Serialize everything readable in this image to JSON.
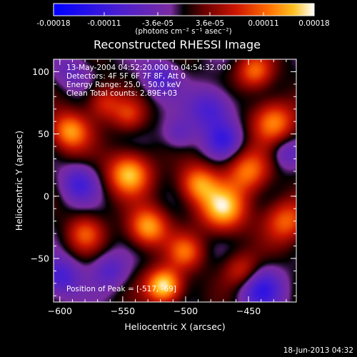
{
  "colorbar": {
    "tick_labels": [
      "-0.00018",
      "-0.00011",
      "-3.6e-05",
      "3.6e-05",
      "0.00011",
      "0.00018"
    ],
    "tick_values": [
      -0.00018,
      -0.00011,
      -3.6e-05,
      3.6e-05,
      0.00011,
      0.00018
    ],
    "range": [
      -0.00018,
      0.00018
    ],
    "units_label": "(photons cm⁻² s⁻¹ asec⁻²)",
    "stops": [
      {
        "v": 0.0,
        "color": "#0000ff"
      },
      {
        "v": 0.25,
        "color": "#4a1fd0"
      },
      {
        "v": 0.45,
        "color": "#7a2ca0"
      },
      {
        "v": 0.5,
        "color": "#000000"
      },
      {
        "v": 0.58,
        "color": "#6a0000"
      },
      {
        "v": 0.7,
        "color": "#cc1500"
      },
      {
        "v": 0.82,
        "color": "#ff6a00"
      },
      {
        "v": 0.92,
        "color": "#ffc020"
      },
      {
        "v": 1.0,
        "color": "#ffffff"
      }
    ]
  },
  "chart_data": {
    "type": "heatmap",
    "title": "Reconstructed RHESSI Image",
    "xlabel": "Heliocentric X (arcsec)",
    "ylabel": "Heliocentric Y (arcsec)",
    "xlim": [
      -605,
      -412
    ],
    "ylim": [
      -85,
      110
    ],
    "x_ticks": [
      -600,
      -550,
      -500,
      -450
    ],
    "y_ticks": [
      -50,
      0,
      50,
      100
    ],
    "annotations": [
      "13-May-2004 04:52:20.000 to 04:54:32.000",
      "Detectors: 4F 5F 6F 7F 8F, Att 0",
      "Energy Range: 25.0 - 50.0 keV",
      "Clean    Total counts: 2.89E+03"
    ],
    "peak_label": "Position of Peak = [-517, -69]",
    "blobs": [
      {
        "x": -517,
        "y": -72,
        "amp": 1.0,
        "s": 10
      },
      {
        "x": -592,
        "y": 52,
        "amp": 0.75,
        "s": 11
      },
      {
        "x": -545,
        "y": 18,
        "amp": 0.85,
        "s": 12
      },
      {
        "x": -530,
        "y": -25,
        "amp": 0.8,
        "s": 11
      },
      {
        "x": -490,
        "y": 10,
        "amp": 0.7,
        "s": 11
      },
      {
        "x": -470,
        "y": -10,
        "amp": 0.85,
        "s": 13
      },
      {
        "x": -450,
        "y": 20,
        "amp": 0.65,
        "s": 12
      },
      {
        "x": -430,
        "y": 60,
        "amp": 0.7,
        "s": 12
      },
      {
        "x": -445,
        "y": 100,
        "amp": 0.6,
        "s": 10
      },
      {
        "x": -420,
        "y": -20,
        "amp": 0.6,
        "s": 12
      },
      {
        "x": -580,
        "y": -30,
        "amp": 0.5,
        "s": 10
      },
      {
        "x": -565,
        "y": 75,
        "amp": 0.45,
        "s": 10
      },
      {
        "x": -500,
        "y": -45,
        "amp": 0.55,
        "s": 10
      },
      {
        "x": -455,
        "y": -60,
        "amp": 0.45,
        "s": 10
      },
      {
        "x": -545,
        "y": 65,
        "amp": 0.4,
        "s": 9
      },
      {
        "x": -480,
        "y": 70,
        "amp": -0.55,
        "s": 12
      },
      {
        "x": -470,
        "y": 45,
        "amp": -0.5,
        "s": 10
      },
      {
        "x": -585,
        "y": 10,
        "amp": -0.5,
        "s": 10
      },
      {
        "x": -600,
        "y": -65,
        "amp": -0.55,
        "s": 11
      },
      {
        "x": -560,
        "y": -60,
        "amp": -0.4,
        "s": 10
      },
      {
        "x": -440,
        "y": -75,
        "amp": -0.6,
        "s": 12
      },
      {
        "x": -520,
        "y": 95,
        "amp": -0.45,
        "s": 10
      },
      {
        "x": -505,
        "y": 50,
        "amp": -0.35,
        "s": 9
      },
      {
        "x": -420,
        "y": 35,
        "amp": -0.35,
        "s": 9
      },
      {
        "x": -590,
        "y": 100,
        "amp": -0.3,
        "s": 10
      }
    ]
  },
  "timestamp": "18-Jun-2013 04:32"
}
